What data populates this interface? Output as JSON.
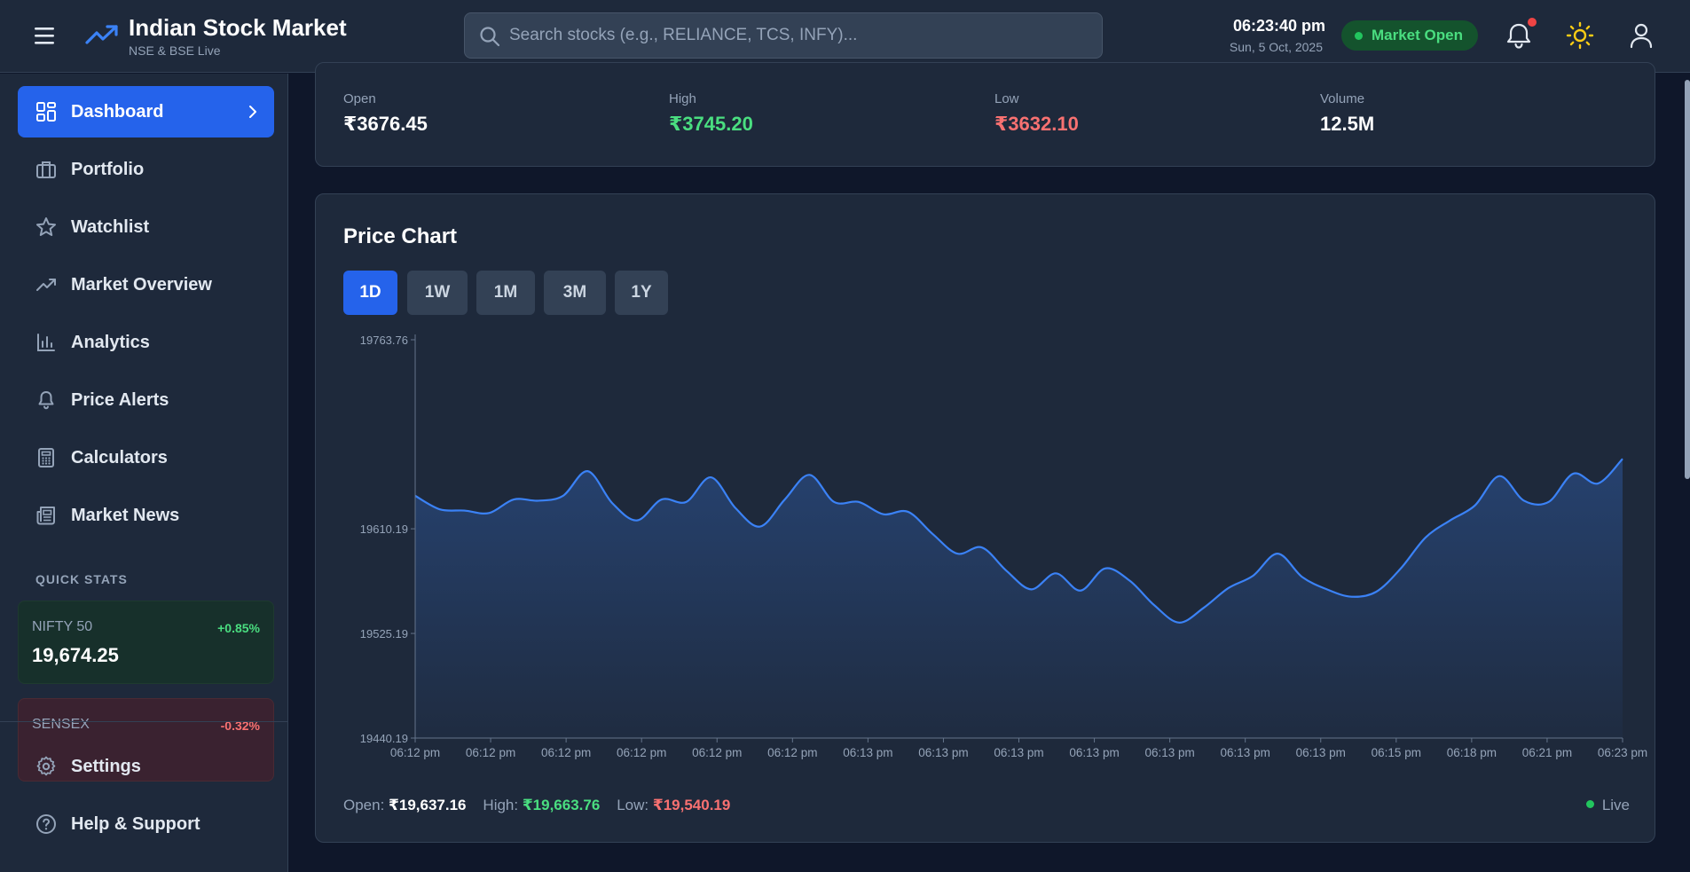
{
  "header": {
    "brand_title": "Indian Stock Market",
    "brand_subtitle": "NSE & BSE Live",
    "search_placeholder": "Search stocks (e.g., RELIANCE, TCS, INFY)...",
    "time": "06:23:40 pm",
    "date": "Sun, 5 Oct, 2025",
    "market_status": "Market Open",
    "icons": [
      "menu-icon",
      "trending-up-icon",
      "search-icon",
      "bell-icon",
      "sun-icon",
      "user-icon"
    ]
  },
  "sidebar": {
    "items": [
      {
        "label": "Dashboard",
        "icon": "dashboard-icon",
        "active": true
      },
      {
        "label": "Portfolio",
        "icon": "briefcase-icon"
      },
      {
        "label": "Watchlist",
        "icon": "star-icon"
      },
      {
        "label": "Market Overview",
        "icon": "trending-up-icon"
      },
      {
        "label": "Analytics",
        "icon": "bar-chart-icon"
      },
      {
        "label": "Price Alerts",
        "icon": "bell-icon"
      },
      {
        "label": "Calculators",
        "icon": "calculator-icon"
      },
      {
        "label": "Market News",
        "icon": "newspaper-icon"
      }
    ],
    "quick_stats_title": "QUICK STATS",
    "quick_stats": [
      {
        "name": "NIFTY 50",
        "change": "+0.85%",
        "value": "19,674.25"
      },
      {
        "name": "SENSEX",
        "change": "-0.32%",
        "value": ""
      }
    ],
    "bottom_items": [
      {
        "label": "Settings",
        "icon": "gear-icon"
      },
      {
        "label": "Help & Support",
        "icon": "help-circle-icon"
      }
    ]
  },
  "stats": {
    "open_label": "Open",
    "open_value": "₹3676.45",
    "high_label": "High",
    "high_value": "₹3745.20",
    "low_label": "Low",
    "low_value": "₹3632.10",
    "volume_label": "Volume",
    "volume_value": "12.5M"
  },
  "chart": {
    "title": "Price Chart",
    "ranges": [
      "1D",
      "1W",
      "1M",
      "3M",
      "1Y"
    ],
    "active_range": "1D",
    "footer": {
      "open_label": "Open:",
      "open_value": "₹19,637.16",
      "high_label": "High:",
      "high_value": "₹19,663.76",
      "low_label": "Low:",
      "low_value": "₹19,540.19",
      "live_label": "Live"
    }
  },
  "colors": {
    "accent": "#2563eb",
    "line": "#3b82f6",
    "positive": "#4ade80",
    "negative": "#f87171",
    "status_green": "#22c55e"
  },
  "chart_data": {
    "type": "area",
    "ylim": [
      19440.19,
      19763.76
    ],
    "y_ticks": [
      "19763.76",
      "19610.19",
      "19525.19",
      "19440.19"
    ],
    "x_tick_labels": [
      "06:12 pm",
      "06:12 pm",
      "06:12 pm",
      "06:12 pm",
      "06:12 pm",
      "06:12 pm",
      "06:13 pm",
      "06:13 pm",
      "06:13 pm",
      "06:13 pm",
      "06:13 pm",
      "06:13 pm",
      "06:13 pm",
      "06:15 pm",
      "06:18 pm",
      "06:21 pm",
      "06:23 pm"
    ],
    "values": [
      19637,
      19626,
      19625,
      19623,
      19634,
      19633,
      19637,
      19657,
      19631,
      19617,
      19634,
      19632,
      19652,
      19627,
      19612,
      19634,
      19654,
      19632,
      19632,
      19622,
      19624,
      19606,
      19590,
      19595,
      19576,
      19561,
      19574,
      19560,
      19578,
      19568,
      19548,
      19534,
      19546,
      19562,
      19572,
      19590,
      19571,
      19561,
      19555,
      19559,
      19578,
      19603,
      19617,
      19629,
      19653,
      19633,
      19632,
      19655,
      19647,
      19667
    ]
  }
}
